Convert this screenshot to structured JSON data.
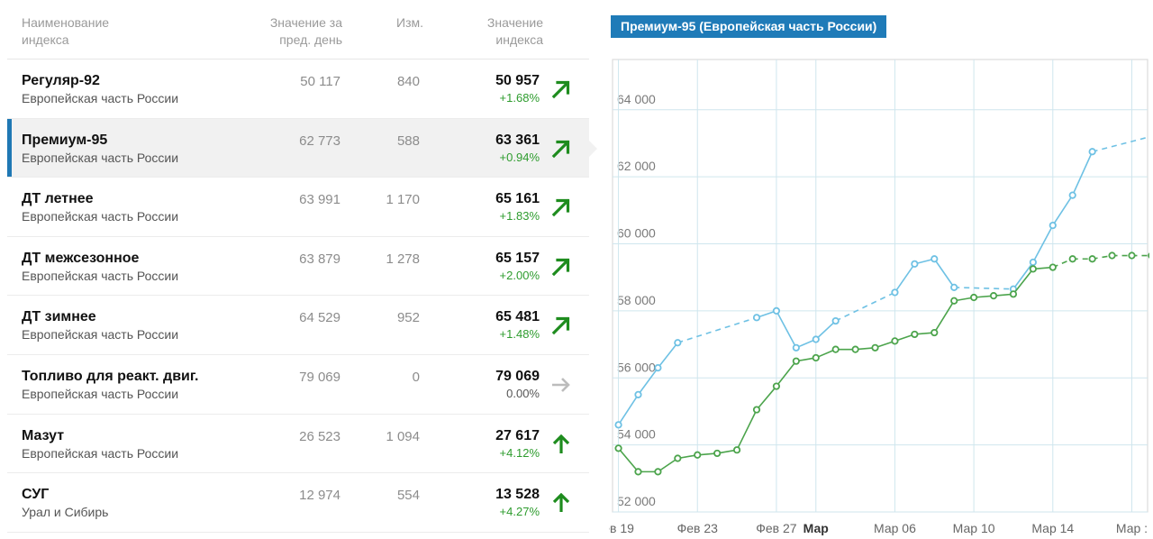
{
  "table": {
    "headers": {
      "name": [
        "Наименование",
        "индекса"
      ],
      "prev": [
        "Значение за",
        "пред. день"
      ],
      "change": [
        "Изм."
      ],
      "value": [
        "Значение",
        "индекса"
      ]
    },
    "rows": [
      {
        "name": "Регуляр-92",
        "region": "Европейская часть России",
        "prev": "50 117",
        "change": "840",
        "value": "50 957",
        "pct": "+1.68%",
        "trend": "up-right",
        "active": false
      },
      {
        "name": "Премиум-95",
        "region": "Европейская часть России",
        "prev": "62 773",
        "change": "588",
        "value": "63 361",
        "pct": "+0.94%",
        "trend": "up-right",
        "active": true
      },
      {
        "name": "ДТ летнее",
        "region": "Европейская часть России",
        "prev": "63 991",
        "change": "1 170",
        "value": "65 161",
        "pct": "+1.83%",
        "trend": "up-right",
        "active": false
      },
      {
        "name": "ДТ межсезонное",
        "region": "Европейская часть России",
        "prev": "63 879",
        "change": "1 278",
        "value": "65 157",
        "pct": "+2.00%",
        "trend": "up-right",
        "active": false
      },
      {
        "name": "ДТ зимнее",
        "region": "Европейская часть России",
        "prev": "64 529",
        "change": "952",
        "value": "65 481",
        "pct": "+1.48%",
        "trend": "up-right",
        "active": false
      },
      {
        "name": "Топливо для реакт. двиг.",
        "region": "Европейская часть России",
        "prev": "79 069",
        "change": "0",
        "value": "79 069",
        "pct": "0.00%",
        "trend": "flat",
        "active": false
      },
      {
        "name": "Мазут",
        "region": "Европейская часть России",
        "prev": "26 523",
        "change": "1 094",
        "value": "27 617",
        "pct": "+4.12%",
        "trend": "up",
        "active": false
      },
      {
        "name": "СУГ",
        "region": "Урал и Сибирь",
        "prev": "12 974",
        "change": "554",
        "value": "13 528",
        "pct": "+4.27%",
        "trend": "up",
        "active": false
      }
    ],
    "colors": {
      "up": "#1e8c1e",
      "flat": "#bcbcbc",
      "accent": "#1f78b4"
    }
  },
  "chart_title": "Премиум-95 (Европейская часть России)",
  "chart_data": {
    "type": "line",
    "title": "Премиум-95 (Европейская часть России)",
    "xlabel": "",
    "ylabel": "",
    "ylim": [
      52000,
      65500
    ],
    "yticks": [
      "52 000",
      "54 000",
      "56 000",
      "58 000",
      "60 000",
      "62 000",
      "64 000"
    ],
    "ytick_values": [
      52000,
      54000,
      56000,
      58000,
      60000,
      62000,
      64000
    ],
    "xticks": [
      {
        "label": "ев 19",
        "day": 0,
        "bold": false
      },
      {
        "label": "Фев 23",
        "day": 4,
        "bold": false
      },
      {
        "label": "Фев 27",
        "day": 8,
        "bold": false
      },
      {
        "label": "Мар",
        "day": 10,
        "bold": true
      },
      {
        "label": "Мар 06",
        "day": 14,
        "bold": false
      },
      {
        "label": "Мар 10",
        "day": 18,
        "bold": false
      },
      {
        "label": "Мар 14",
        "day": 22,
        "bold": false
      },
      {
        "label": "Мар :",
        "day": 26,
        "bold": false
      }
    ],
    "xlim": [
      -0.3,
      26.8
    ],
    "grid": true,
    "series": [
      {
        "color": "#6ec1e4",
        "points": [
          [
            0,
            54600
          ],
          [
            1,
            55500
          ],
          [
            2,
            56300
          ],
          [
            3,
            57050
          ],
          [
            7,
            57800
          ],
          [
            8,
            58000
          ],
          [
            9,
            56900
          ],
          [
            10,
            57150
          ],
          [
            11,
            57700
          ],
          [
            14,
            58550
          ],
          [
            15,
            59400
          ],
          [
            16,
            59550
          ],
          [
            17,
            58700
          ],
          [
            20,
            58650
          ],
          [
            21,
            59450
          ],
          [
            22,
            60550
          ],
          [
            23,
            61450
          ],
          [
            24,
            62750
          ],
          [
            28,
            63361
          ]
        ],
        "dashed_segments": [
          [
            3,
            7
          ],
          [
            11,
            14
          ],
          [
            17,
            20
          ],
          [
            24,
            28
          ]
        ]
      },
      {
        "color": "#4ca44c",
        "points": [
          [
            0,
            53900
          ],
          [
            1,
            53200
          ],
          [
            2,
            53200
          ],
          [
            3,
            53600
          ],
          [
            4,
            53700
          ],
          [
            5,
            53750
          ],
          [
            6,
            53850
          ],
          [
            7,
            55050
          ],
          [
            8,
            55750
          ],
          [
            9,
            56500
          ],
          [
            10,
            56600
          ],
          [
            11,
            56850
          ],
          [
            12,
            56850
          ],
          [
            13,
            56900
          ],
          [
            14,
            57100
          ],
          [
            15,
            57300
          ],
          [
            16,
            57350
          ],
          [
            17,
            58300
          ],
          [
            18,
            58400
          ],
          [
            19,
            58450
          ],
          [
            20,
            58500
          ],
          [
            21,
            59250
          ],
          [
            22,
            59300
          ],
          [
            23,
            59550
          ],
          [
            24,
            59550
          ],
          [
            25,
            59650
          ],
          [
            26,
            59650
          ],
          [
            27,
            59650
          ]
        ],
        "dashed_segments": [
          [
            22,
            27
          ]
        ]
      }
    ]
  }
}
